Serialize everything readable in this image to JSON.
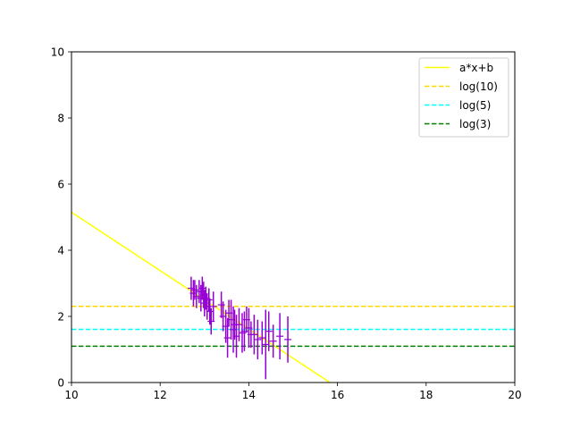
{
  "chart_data": {
    "type": "scatter",
    "title": "",
    "xlabel": "",
    "ylabel": "",
    "xlim": [
      10,
      20
    ],
    "ylim": [
      0,
      10
    ],
    "x_ticks": [
      10,
      12,
      14,
      16,
      18,
      20
    ],
    "y_ticks": [
      0,
      2,
      4,
      6,
      8,
      10
    ],
    "grid": false,
    "legend_position": "top-right",
    "series": [
      {
        "name": "a*x+b",
        "kind": "line",
        "style": "solid",
        "color": "#ffff00",
        "x": [
          10,
          15.83
        ],
        "y": [
          5.15,
          0
        ]
      },
      {
        "name": "log(10)",
        "kind": "hline",
        "style": "dashed",
        "color": "#ffd700",
        "y": 2.303
      },
      {
        "name": "log(5)",
        "kind": "hline",
        "style": "dashed",
        "color": "#00ffff",
        "y": 1.609
      },
      {
        "name": "log(3)",
        "kind": "hline",
        "style": "dashed",
        "color": "#008000",
        "y": 1.099
      }
    ],
    "errorbars": {
      "color": "#9400d3",
      "points": [
        {
          "x": 12.7,
          "y": 2.85,
          "err": 0.35
        },
        {
          "x": 12.75,
          "y": 2.7,
          "err": 0.4
        },
        {
          "x": 12.78,
          "y": 2.8,
          "err": 0.3
        },
        {
          "x": 12.82,
          "y": 2.6,
          "err": 0.35
        },
        {
          "x": 12.88,
          "y": 2.75,
          "err": 0.35
        },
        {
          "x": 12.92,
          "y": 2.55,
          "err": 0.4
        },
        {
          "x": 12.95,
          "y": 2.85,
          "err": 0.35
        },
        {
          "x": 12.98,
          "y": 2.65,
          "err": 0.4
        },
        {
          "x": 13.0,
          "y": 2.4,
          "err": 0.4
        },
        {
          "x": 13.03,
          "y": 2.55,
          "err": 0.35
        },
        {
          "x": 13.06,
          "y": 2.3,
          "err": 0.4
        },
        {
          "x": 13.1,
          "y": 2.5,
          "err": 0.35
        },
        {
          "x": 13.12,
          "y": 2.15,
          "err": 0.4
        },
        {
          "x": 13.15,
          "y": 1.85,
          "err": 0.4
        },
        {
          "x": 13.2,
          "y": 2.3,
          "err": 0.45
        },
        {
          "x": 13.38,
          "y": 2.35,
          "err": 0.4
        },
        {
          "x": 13.42,
          "y": 2.0,
          "err": 0.45
        },
        {
          "x": 13.48,
          "y": 1.7,
          "err": 0.5
        },
        {
          "x": 13.52,
          "y": 1.35,
          "err": 0.6
        },
        {
          "x": 13.55,
          "y": 2.1,
          "err": 0.4
        },
        {
          "x": 13.6,
          "y": 1.9,
          "err": 0.6
        },
        {
          "x": 13.65,
          "y": 1.6,
          "err": 0.7
        },
        {
          "x": 13.68,
          "y": 1.75,
          "err": 0.45
        },
        {
          "x": 13.72,
          "y": 1.4,
          "err": 0.65
        },
        {
          "x": 13.78,
          "y": 1.75,
          "err": 0.5
        },
        {
          "x": 13.85,
          "y": 1.5,
          "err": 0.6
        },
        {
          "x": 13.9,
          "y": 1.55,
          "err": 0.6
        },
        {
          "x": 13.95,
          "y": 1.9,
          "err": 0.4
        },
        {
          "x": 14.0,
          "y": 1.65,
          "err": 0.6
        },
        {
          "x": 14.05,
          "y": 1.45,
          "err": 0.4
        },
        {
          "x": 14.12,
          "y": 1.45,
          "err": 0.6
        },
        {
          "x": 14.2,
          "y": 1.3,
          "err": 0.6
        },
        {
          "x": 14.3,
          "y": 1.35,
          "err": 0.5
        },
        {
          "x": 14.38,
          "y": 1.15,
          "err": 1.05
        },
        {
          "x": 14.45,
          "y": 1.55,
          "err": 0.6
        },
        {
          "x": 14.55,
          "y": 1.25,
          "err": 0.5
        },
        {
          "x": 14.7,
          "y": 1.4,
          "err": 0.7
        },
        {
          "x": 14.88,
          "y": 1.3,
          "err": 0.7
        }
      ]
    }
  }
}
